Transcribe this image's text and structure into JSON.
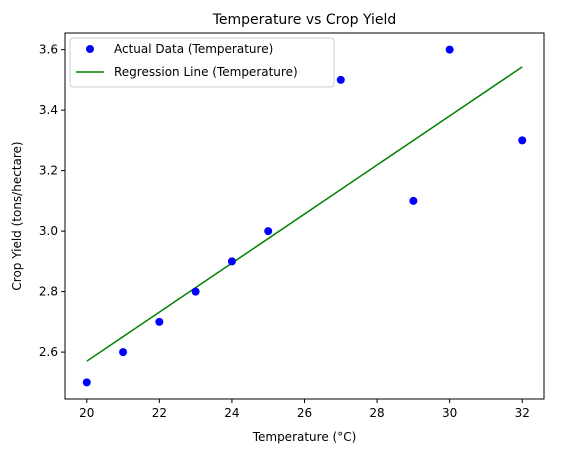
{
  "chart_data": {
    "type": "scatter",
    "title": "Temperature vs Crop Yield",
    "xlabel": "Temperature (°C)",
    "ylabel": "Crop Yield (tons/hectare)",
    "xlim": [
      19.4,
      32.6
    ],
    "ylim": [
      2.445,
      3.655
    ],
    "xticks": [
      20,
      22,
      24,
      26,
      28,
      30,
      32
    ],
    "yticks": [
      2.6,
      2.8,
      3.0,
      3.2,
      3.4,
      3.6
    ],
    "grid": false,
    "legend_position": "top-left",
    "series": [
      {
        "name": "Actual Data (Temperature)",
        "kind": "scatter",
        "color": "#0000ff",
        "x": [
          20,
          21,
          22,
          23,
          24,
          25,
          27,
          29,
          30,
          32
        ],
        "y": [
          2.5,
          2.6,
          2.7,
          2.8,
          2.9,
          3.0,
          3.5,
          3.1,
          3.6,
          3.3
        ]
      },
      {
        "name": "Regression Line (Temperature)",
        "kind": "line",
        "color": "#008000",
        "x": [
          20,
          32
        ],
        "y": [
          2.57,
          3.543
        ]
      }
    ]
  }
}
